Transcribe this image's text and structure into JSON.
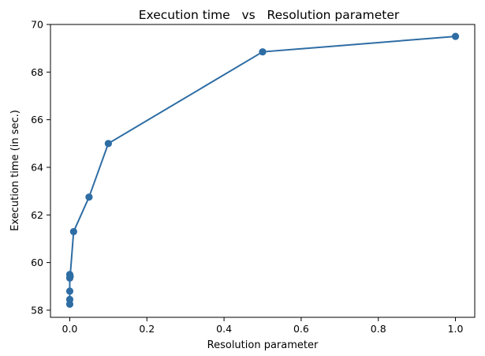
{
  "chart_data": {
    "type": "line",
    "title": "Execution time   vs   Resolution parameter",
    "xlabel": "Resolution parameter",
    "ylabel": "Execution time (in sec.)",
    "xlim": [
      -0.05,
      1.05
    ],
    "ylim": [
      57.7,
      70.0
    ],
    "xticks": [
      0.0,
      0.2,
      0.4,
      0.6,
      0.8,
      1.0
    ],
    "xtick_labels": [
      "0.0",
      "0.2",
      "0.4",
      "0.6",
      "0.8",
      "1.0"
    ],
    "yticks": [
      58,
      60,
      62,
      64,
      66,
      68,
      70
    ],
    "ytick_labels": [
      "58",
      "60",
      "62",
      "64",
      "66",
      "68",
      "70"
    ],
    "grid": false,
    "series": [
      {
        "color": "#2e6da4",
        "marker": "circle",
        "x": [
          0.0,
          0.0,
          0.0,
          0.0,
          0.0,
          0.001,
          0.01,
          0.05,
          0.1,
          0.5,
          1.0
        ],
        "y": [
          58.25,
          58.45,
          58.8,
          59.35,
          59.5,
          59.42,
          61.3,
          62.75,
          65.0,
          68.85,
          69.5
        ]
      }
    ]
  }
}
